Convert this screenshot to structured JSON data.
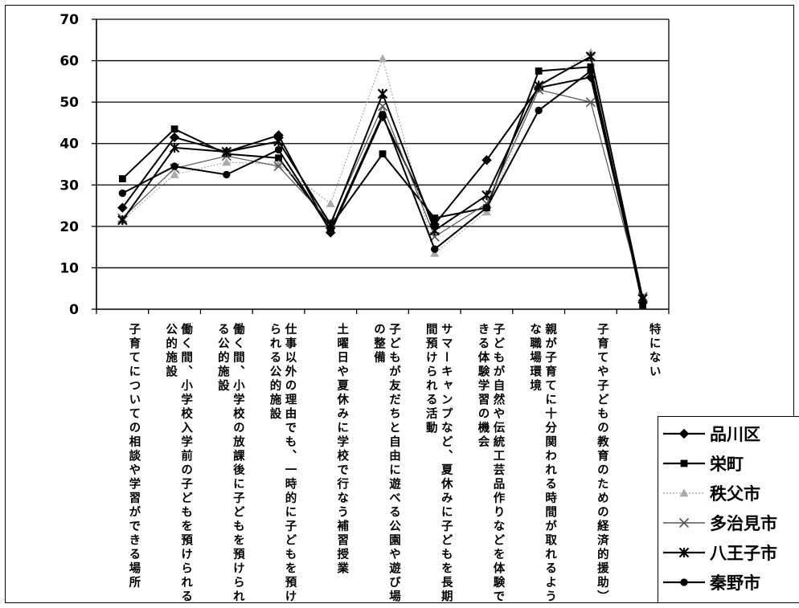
{
  "chart_data": {
    "type": "line",
    "title": "",
    "xlabel": "",
    "ylabel": "",
    "ylim": [
      0,
      70
    ],
    "yticks": [
      "0",
      "10",
      "20",
      "30",
      "40",
      "50",
      "60",
      "70"
    ],
    "grid": true,
    "legend_position": "bottom-right",
    "categories": [
      "子育てについての相談や学習ができる場所",
      "働く間、小学校入学前の子どもを預けられる公的施設",
      "働く間、小学校の放課後に子どもを預けられる公的施設",
      "仕事以外の理由でも、一時的に子どもを預けられる公的施設",
      "土曜日や夏休みに学校で行なう補習授業",
      "子どもが友だちと自由に遊べる公園や遊び場の整備",
      "サマーキャンプなど、夏休みに子どもを長期間預けられる活動",
      "子どもが自然や伝統工芸品作りなどを体験できる体験学習の機会",
      "親が子育てに十分関われる時間が取れるような職場環境",
      "子育てや子どもの教育のための経済的援助）",
      "特にない"
    ],
    "series": [
      {
        "name": "品川区",
        "marker": "diamond",
        "color": "#000000",
        "values": [
          24.5,
          41.5,
          38,
          42,
          18.5,
          46.5,
          20.5,
          36,
          53.5,
          56,
          2
        ]
      },
      {
        "name": "栄町",
        "marker": "square",
        "color": "#000000",
        "values": [
          31.5,
          43.5,
          37.5,
          36.5,
          20,
          37.5,
          22,
          24.5,
          57.5,
          58.5,
          1
        ]
      },
      {
        "name": "秩父市",
        "marker": "triangle",
        "color": "#aaaaaa",
        "values": [
          21.5,
          32.5,
          35.5,
          35,
          25.5,
          60.5,
          13.5,
          23.5,
          53.5,
          62,
          3
        ]
      },
      {
        "name": "多治見市",
        "marker": "x",
        "color": "#555555",
        "values": [
          22,
          34,
          37,
          34.5,
          21,
          49,
          17.5,
          25.5,
          53,
          50,
          3
        ]
      },
      {
        "name": "八王子市",
        "marker": "asterisk",
        "color": "#000000",
        "values": [
          21.5,
          39,
          38,
          40.5,
          20.5,
          52,
          19,
          27.5,
          54,
          61,
          2.5
        ]
      },
      {
        "name": "秦野市",
        "marker": "circle",
        "color": "#000000",
        "values": [
          28,
          34.5,
          32.5,
          38.5,
          19,
          47,
          14.5,
          24.5,
          48,
          57.5,
          2
        ]
      }
    ]
  },
  "legend": {
    "items": [
      "品川区",
      "栄町",
      "秩父市",
      "多治見市",
      "八王子市",
      "秦野市"
    ]
  }
}
